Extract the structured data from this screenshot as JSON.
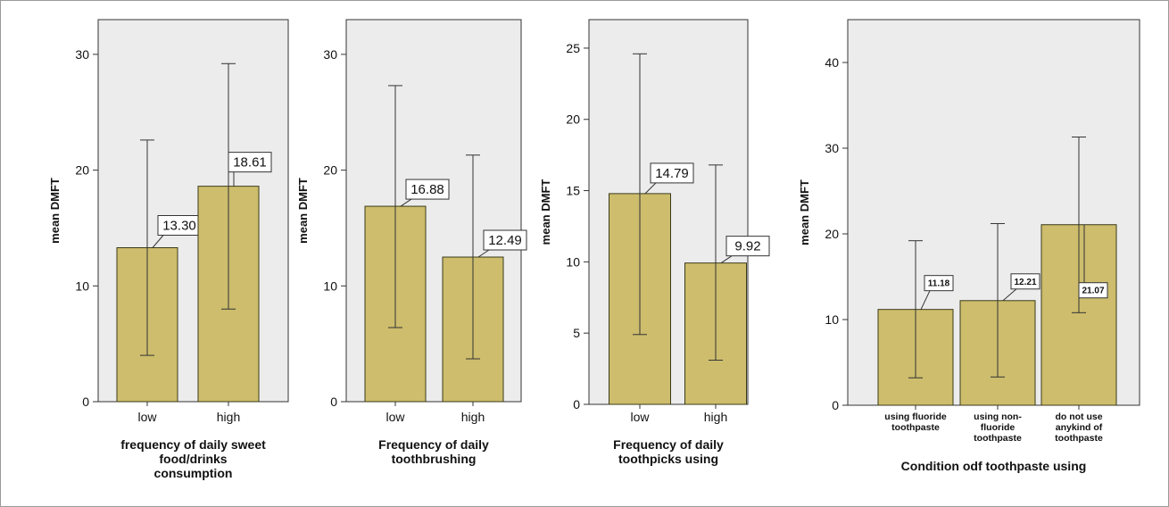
{
  "colors": {
    "bar": "#cdbd6c",
    "bar_stroke": "#3a3a1a",
    "plot_bg": "#ececec",
    "axis": "#333333"
  },
  "chart_data": [
    {
      "type": "bar",
      "categories": [
        "low",
        "high"
      ],
      "values": [
        13.3,
        18.61
      ],
      "labels": [
        "13.30",
        "18.61"
      ],
      "error_low": [
        4.0,
        8.0
      ],
      "error_high": [
        22.6,
        29.2
      ],
      "ylim": [
        0,
        33
      ],
      "yticks": [
        0,
        10,
        20,
        30
      ],
      "ylabel": "mean DMFT",
      "xlabel": [
        "frequency of daily sweet",
        "food/drinks",
        "consumption"
      ]
    },
    {
      "type": "bar",
      "categories": [
        "low",
        "high"
      ],
      "values": [
        16.88,
        12.49
      ],
      "labels": [
        "16.88",
        "12.49"
      ],
      "error_low": [
        6.4,
        3.7
      ],
      "error_high": [
        27.3,
        21.3
      ],
      "ylim": [
        0,
        33
      ],
      "yticks": [
        0,
        10,
        20,
        30
      ],
      "ylabel": "mean DMFT",
      "xlabel": [
        "Frequency of daily",
        "toothbrushing"
      ]
    },
    {
      "type": "bar",
      "categories": [
        "low",
        "high"
      ],
      "values": [
        14.79,
        9.92
      ],
      "labels": [
        "14.79",
        "9.92"
      ],
      "error_low": [
        4.9,
        3.1
      ],
      "error_high": [
        24.6,
        16.8
      ],
      "ylim": [
        0,
        27
      ],
      "yticks": [
        0,
        5,
        10,
        15,
        20,
        25
      ],
      "ylabel": "mean DMFT",
      "xlabel": [
        "Frequency of  daily",
        "toothpicks using"
      ]
    },
    {
      "type": "bar",
      "categories": [
        [
          "using fluoride",
          "toothpaste"
        ],
        [
          "using non-",
          "fluoride",
          "toothpaste"
        ],
        [
          "do not use",
          "anykind of",
          "toothpaste"
        ]
      ],
      "values": [
        11.18,
        12.21,
        21.07
      ],
      "labels": [
        "11.18",
        "12.21",
        "21.07"
      ],
      "error_low": [
        3.2,
        3.3,
        10.8
      ],
      "error_high": [
        19.2,
        21.2,
        31.3
      ],
      "ylim": [
        0,
        45
      ],
      "yticks": [
        0,
        10,
        20,
        30,
        40
      ],
      "ylabel": "mean DMFT",
      "xlabel": [
        "Condition odf toothpaste using"
      ]
    }
  ]
}
